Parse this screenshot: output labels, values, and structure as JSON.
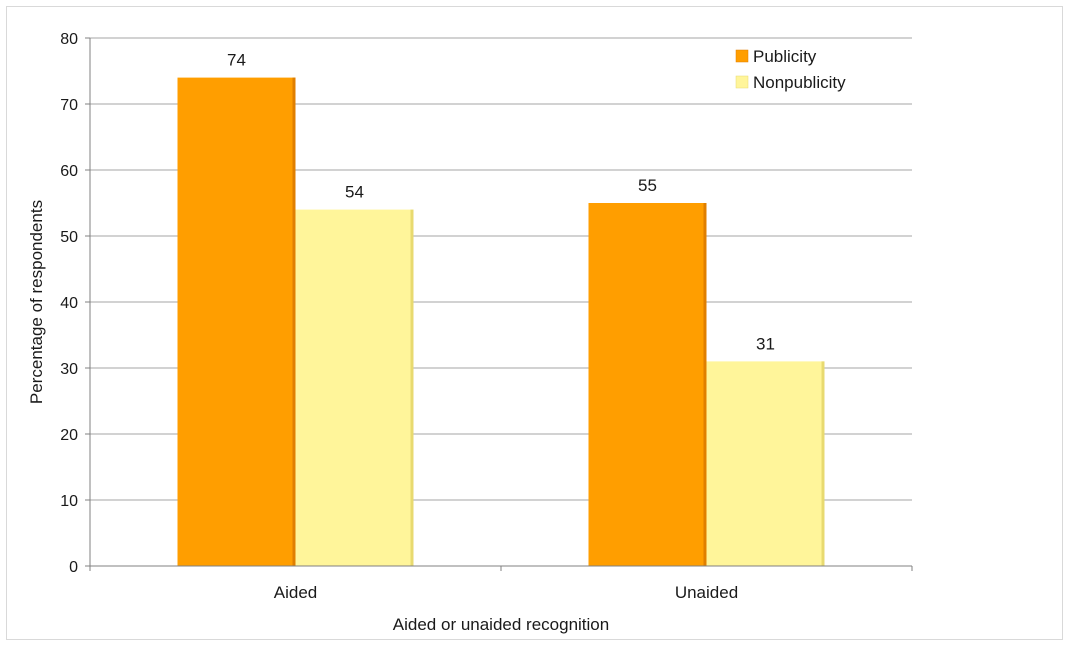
{
  "chart_data": {
    "type": "bar",
    "title": "",
    "xlabel": "Aided or unaided recognition",
    "ylabel": "Percentage of respondents",
    "categories": [
      "Aided",
      "Unaided"
    ],
    "series": [
      {
        "name": "Publicity",
        "values": [
          74,
          55
        ],
        "color": "#FF9E00",
        "side": "#E07F00"
      },
      {
        "name": "Nonpublicity",
        "values": [
          54,
          31
        ],
        "color": "#FFF59A",
        "side": "#E8DA70"
      }
    ],
    "ylim": [
      0,
      80
    ],
    "yticks": [
      0,
      10,
      20,
      30,
      40,
      50,
      60,
      70,
      80
    ],
    "grid": true,
    "legend": "top-right",
    "gridColor": "#a6a6a6",
    "plotBackground": "#ffffff"
  }
}
